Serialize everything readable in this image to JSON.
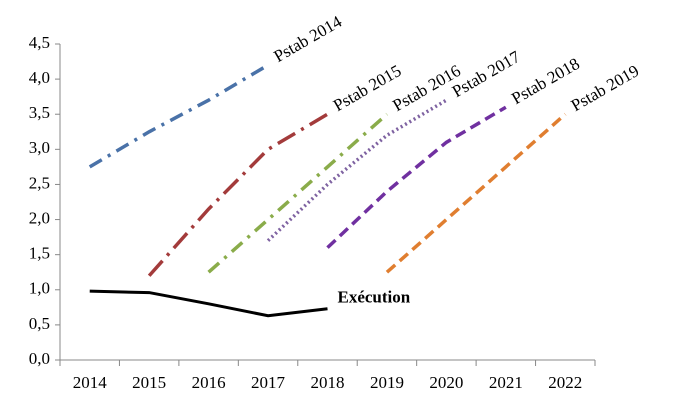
{
  "chart_data": {
    "type": "line",
    "categories": [
      "2014",
      "2015",
      "2016",
      "2017",
      "2018",
      "2019",
      "2020",
      "2021",
      "2022"
    ],
    "ylim": [
      0,
      4.5
    ],
    "yticks": [
      {
        "value": 0,
        "label": "0,0"
      },
      {
        "value": 0.5,
        "label": "0,5"
      },
      {
        "value": 1,
        "label": "1,0"
      },
      {
        "value": 1.5,
        "label": "1,5"
      },
      {
        "value": 2,
        "label": "2,0"
      },
      {
        "value": 2.5,
        "label": "2,5"
      },
      {
        "value": 3,
        "label": "3,0"
      },
      {
        "value": 3.5,
        "label": "3,5"
      },
      {
        "value": 4,
        "label": "4,0"
      },
      {
        "value": 4.5,
        "label": "4,5"
      }
    ],
    "grid": false,
    "series": [
      {
        "name": "Pstab 2014",
        "color": "#4a72a8",
        "style": "dashdot",
        "values": [
          2.75,
          3.25,
          3.7,
          4.2,
          null,
          null,
          null,
          null,
          null
        ]
      },
      {
        "name": "Pstab 2015",
        "color": "#a33b3b",
        "style": "longdashdot",
        "values": [
          null,
          1.2,
          2.15,
          3.0,
          3.5,
          null,
          null,
          null,
          null
        ]
      },
      {
        "name": "Pstab 2016",
        "color": "#8aac4a",
        "style": "dashdot",
        "values": [
          null,
          null,
          1.25,
          2.0,
          2.75,
          3.5,
          null,
          null,
          null
        ]
      },
      {
        "name": "Pstab 2017",
        "color": "#7e62a1",
        "style": "dot",
        "values": [
          null,
          null,
          null,
          1.7,
          2.5,
          3.2,
          3.7,
          null,
          null
        ]
      },
      {
        "name": "Pstab 2018",
        "color": "#7030a0",
        "style": "dash",
        "values": [
          null,
          null,
          null,
          null,
          1.6,
          2.4,
          3.1,
          3.6,
          null
        ]
      },
      {
        "name": "Pstab 2019",
        "color": "#e07e30",
        "style": "dash",
        "values": [
          null,
          null,
          null,
          null,
          null,
          1.25,
          2.0,
          2.75,
          3.5
        ]
      },
      {
        "name": "Exécution",
        "color": "#000000",
        "style": "solid",
        "values": [
          0.98,
          0.96,
          0.8,
          0.63,
          0.73,
          null,
          null,
          null,
          null
        ]
      }
    ]
  }
}
